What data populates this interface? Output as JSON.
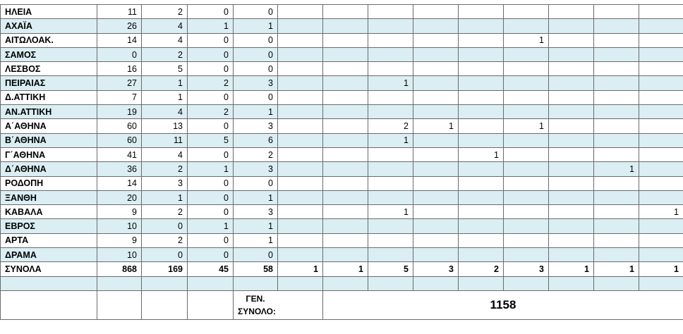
{
  "table": {
    "rows": [
      [
        "ΗΛΕΙΑ",
        11,
        2,
        0,
        0,
        null,
        null,
        null,
        null,
        null,
        null,
        null,
        null,
        null
      ],
      [
        "ΑΧΑΪΑ",
        26,
        4,
        1,
        1,
        null,
        null,
        null,
        null,
        null,
        null,
        null,
        null,
        null
      ],
      [
        "ΑΙΤΩΛΟΑΚ.",
        14,
        4,
        0,
        0,
        null,
        null,
        null,
        null,
        null,
        1,
        null,
        null,
        null
      ],
      [
        "ΣΑΜΟΣ",
        0,
        2,
        0,
        0,
        null,
        null,
        null,
        null,
        null,
        null,
        null,
        null,
        null
      ],
      [
        "ΛΕΣΒΟΣ",
        16,
        5,
        0,
        0,
        null,
        null,
        null,
        null,
        null,
        null,
        null,
        null,
        null
      ],
      [
        "ΠΕΙΡΑΙΑΣ",
        27,
        1,
        2,
        3,
        null,
        null,
        1,
        null,
        null,
        null,
        null,
        null,
        null
      ],
      [
        "Δ.ΑΤΤΙΚΗ",
        7,
        1,
        0,
        0,
        null,
        null,
        null,
        null,
        null,
        null,
        null,
        null,
        null
      ],
      [
        "ΑΝ.ΑΤΤΙΚΗ",
        19,
        4,
        2,
        1,
        null,
        null,
        null,
        null,
        null,
        null,
        null,
        null,
        null
      ],
      [
        "Α΄ΑΘΗΝΑ",
        60,
        13,
        0,
        3,
        null,
        null,
        2,
        1,
        null,
        1,
        null,
        null,
        null
      ],
      [
        "Β΄ΑΘΗΝΑ",
        60,
        11,
        5,
        6,
        null,
        null,
        1,
        null,
        null,
        null,
        null,
        null,
        null
      ],
      [
        "Γ΄ΑΘΗΝΑ",
        41,
        4,
        0,
        2,
        null,
        null,
        null,
        null,
        1,
        null,
        null,
        null,
        null
      ],
      [
        "Δ΄ΑΘΗΝΑ",
        36,
        2,
        1,
        3,
        null,
        null,
        null,
        null,
        null,
        null,
        null,
        1,
        null
      ],
      [
        "ΡΟΔΟΠΗ",
        14,
        3,
        0,
        0,
        null,
        null,
        null,
        null,
        null,
        null,
        null,
        null,
        null
      ],
      [
        "ΞΑΝΘΗ",
        20,
        1,
        0,
        1,
        null,
        null,
        null,
        null,
        null,
        null,
        null,
        null,
        null
      ],
      [
        "ΚΑΒΑΛΑ",
        9,
        2,
        0,
        3,
        null,
        null,
        1,
        null,
        null,
        null,
        null,
        null,
        1
      ],
      [
        "ΕΒΡΟΣ",
        10,
        0,
        1,
        1,
        null,
        null,
        null,
        null,
        null,
        null,
        null,
        null,
        null
      ],
      [
        "ΑΡΤΑ",
        9,
        2,
        0,
        1,
        null,
        null,
        null,
        null,
        null,
        null,
        null,
        null,
        null
      ],
      [
        "ΔΡΑΜΑ",
        10,
        0,
        0,
        0,
        null,
        null,
        null,
        null,
        null,
        null,
        null,
        null,
        null
      ]
    ],
    "totals": [
      "ΣΥΝΟΛΑ",
      868,
      169,
      45,
      58,
      1,
      1,
      5,
      3,
      2,
      3,
      1,
      1,
      1
    ],
    "grand_total": {
      "label": "ΓΕΝ. ΣΥΝΟΛΟ:",
      "value": 1158
    }
  }
}
